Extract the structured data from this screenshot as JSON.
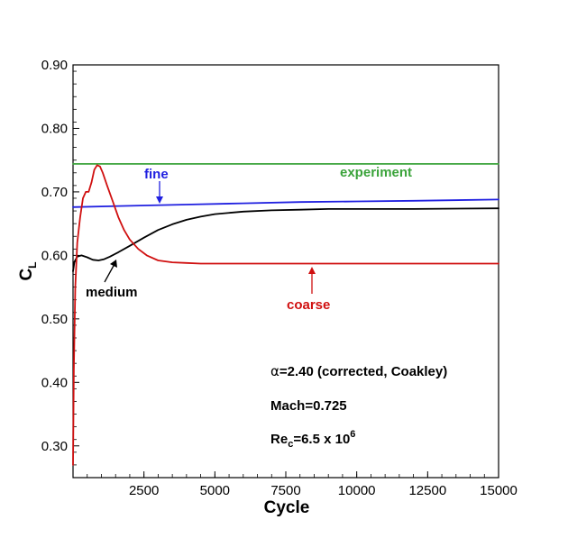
{
  "chart_data": {
    "type": "line",
    "xlabel": "Cycle",
    "ylabel_main": "C",
    "ylabel_sub": "L",
    "xlim": [
      0,
      15000
    ],
    "ylim": [
      0.25,
      0.9
    ],
    "xticks": [
      2500,
      5000,
      7500,
      10000,
      12500,
      15000
    ],
    "xtick_labels": [
      "2500",
      "5000",
      "7500",
      "10000",
      "12500",
      "15000"
    ],
    "yticks": [
      0.3,
      0.4,
      0.5,
      0.6,
      0.7,
      0.8,
      0.9
    ],
    "ytick_labels": [
      "0.30",
      "0.40",
      "0.50",
      "0.60",
      "0.70",
      "0.80",
      "0.90"
    ],
    "grid": false,
    "series": [
      {
        "name": "experiment",
        "color": "#3aa33a",
        "x": [
          0,
          15000
        ],
        "y": [
          0.744,
          0.744
        ]
      },
      {
        "name": "fine",
        "color": "#2020e0",
        "x": [
          0,
          2000,
          4000,
          6000,
          8000,
          10000,
          12000,
          15000
        ],
        "y": [
          0.676,
          0.678,
          0.68,
          0.682,
          0.684,
          0.685,
          0.686,
          0.688
        ]
      },
      {
        "name": "medium",
        "color": "#000000",
        "x": [
          0,
          50,
          150,
          300,
          500,
          700,
          900,
          1100,
          1300,
          1600,
          2000,
          2500,
          3000,
          3500,
          4000,
          4500,
          5000,
          6000,
          7000,
          8000,
          9000,
          10000,
          12000,
          15000
        ],
        "y": [
          0.575,
          0.59,
          0.598,
          0.6,
          0.597,
          0.593,
          0.592,
          0.594,
          0.598,
          0.605,
          0.615,
          0.628,
          0.64,
          0.649,
          0.656,
          0.661,
          0.665,
          0.669,
          0.671,
          0.672,
          0.673,
          0.673,
          0.673,
          0.674
        ]
      },
      {
        "name": "coarse",
        "color": "#d01010",
        "x": [
          0,
          30,
          80,
          150,
          250,
          350,
          450,
          550,
          650,
          750,
          850,
          950,
          1050,
          1200,
          1400,
          1600,
          1800,
          2000,
          2300,
          2600,
          3000,
          3500,
          4000,
          4500,
          5000,
          7000,
          10000,
          15000
        ],
        "y": [
          0.27,
          0.42,
          0.55,
          0.62,
          0.66,
          0.69,
          0.7,
          0.7,
          0.715,
          0.735,
          0.742,
          0.74,
          0.73,
          0.71,
          0.685,
          0.66,
          0.64,
          0.625,
          0.61,
          0.6,
          0.592,
          0.589,
          0.588,
          0.587,
          0.587,
          0.587,
          0.587,
          0.587
        ]
      }
    ],
    "annotations": {
      "experiment": "experiment",
      "fine": "fine",
      "medium": "medium",
      "coarse": "coarse"
    },
    "conditions": {
      "alpha_symbol": "α",
      "alpha_text": "=2.40 (corrected, Coakley)",
      "mach": "Mach=0.725",
      "re_main": "Re",
      "re_sub": "c",
      "re_value": "=6.5 x 10",
      "re_exp": "6"
    }
  }
}
